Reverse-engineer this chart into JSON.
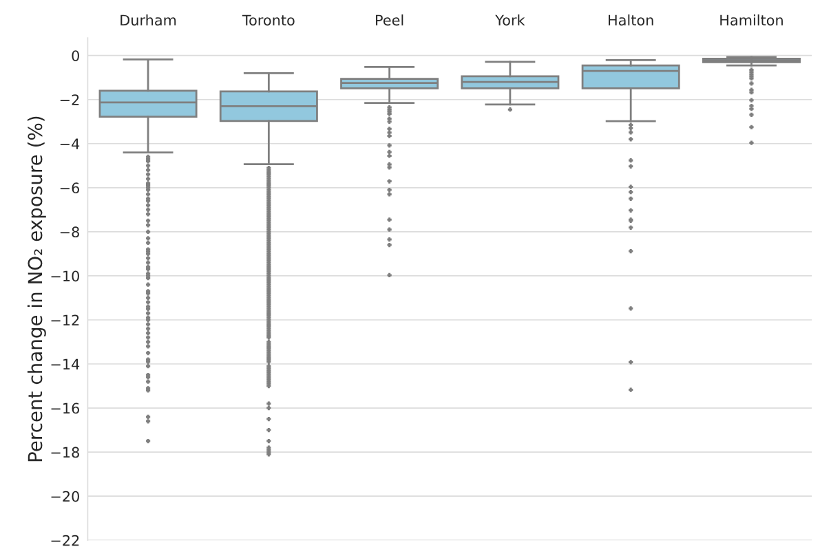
{
  "chart_data": {
    "type": "box",
    "ylabel": "Percent change in NO₂ exposure (%)",
    "categories": [
      "Durham",
      "Toronto",
      "Peel",
      "York",
      "Halton",
      "Hamilton"
    ],
    "color": "#92c8de",
    "boxes": [
      {
        "low": -4.4,
        "q1": -2.78,
        "median": -2.13,
        "q3": -1.6,
        "high": -0.18,
        "outliers": [
          -4.6,
          -4.7,
          -4.8,
          -5.0,
          -5.2,
          -5.4,
          -5.6,
          -5.8,
          -5.9,
          -6.0,
          -6.1,
          -6.3,
          -6.5,
          -6.6,
          -6.8,
          -7.0,
          -7.2,
          -7.5,
          -7.7,
          -8.0,
          -8.3,
          -8.5,
          -8.8,
          -8.9,
          -9.0,
          -9.2,
          -9.4,
          -9.6,
          -9.7,
          -9.9,
          -10.0,
          -10.1,
          -10.4,
          -10.7,
          -10.8,
          -11.0,
          -11.2,
          -11.4,
          -11.5,
          -11.7,
          -11.9,
          -12.0,
          -12.2,
          -12.4,
          -12.6,
          -12.8,
          -13.0,
          -13.2,
          -13.5,
          -13.8,
          -13.9,
          -14.1,
          -14.5,
          -14.6,
          -14.8,
          -15.1,
          -15.2,
          -16.4,
          -16.6,
          -17.5
        ]
      },
      {
        "low": -4.93,
        "q1": -2.97,
        "median": -2.3,
        "q3": -1.63,
        "high": -0.8,
        "outliers": [
          -5.1,
          -5.2,
          -5.3,
          -5.4,
          -5.5,
          -5.6,
          -5.7,
          -5.8,
          -5.9,
          -6.0,
          -6.1,
          -6.2,
          -6.3,
          -6.4,
          -6.5,
          -6.6,
          -6.7,
          -6.8,
          -6.9,
          -7.0,
          -7.1,
          -7.2,
          -7.3,
          -7.4,
          -7.5,
          -7.6,
          -7.7,
          -7.8,
          -7.9,
          -8.0,
          -8.1,
          -8.2,
          -8.3,
          -8.4,
          -8.5,
          -8.6,
          -8.7,
          -8.8,
          -8.9,
          -9.0,
          -9.1,
          -9.2,
          -9.3,
          -9.4,
          -9.5,
          -9.6,
          -9.7,
          -9.8,
          -9.9,
          -10.0,
          -10.1,
          -10.2,
          -10.3,
          -10.4,
          -10.5,
          -10.6,
          -10.7,
          -10.8,
          -10.9,
          -11.0,
          -11.1,
          -11.2,
          -11.3,
          -11.4,
          -11.5,
          -11.6,
          -11.7,
          -11.8,
          -11.9,
          -12.0,
          -12.1,
          -12.2,
          -12.3,
          -12.4,
          -12.5,
          -12.6,
          -12.7,
          -12.8,
          -13.0,
          -13.1,
          -13.2,
          -13.3,
          -13.4,
          -13.5,
          -13.6,
          -13.7,
          -13.8,
          -13.9,
          -14.1,
          -14.2,
          -14.3,
          -14.4,
          -14.5,
          -14.6,
          -14.7,
          -14.8,
          -14.9,
          -15.0,
          -15.8,
          -16.0,
          -16.5,
          -17.0,
          -17.5,
          -17.8,
          -17.9,
          -18.0,
          -18.1
        ]
      },
      {
        "low": -2.15,
        "q1": -1.49,
        "median": -1.25,
        "q3": -1.06,
        "high": -0.52,
        "outliers": [
          -2.35,
          -2.45,
          -2.55,
          -2.65,
          -2.87,
          -3.0,
          -3.33,
          -3.5,
          -3.65,
          -4.08,
          -4.38,
          -4.55,
          -4.94,
          -5.08,
          -5.71,
          -6.1,
          -6.3,
          -7.45,
          -7.9,
          -8.35,
          -8.6,
          -9.97
        ]
      },
      {
        "low": -2.22,
        "q1": -1.49,
        "median": -1.2,
        "q3": -0.94,
        "high": -0.29,
        "outliers": [
          -2.45
        ]
      },
      {
        "low": -2.98,
        "q1": -1.49,
        "median": -0.7,
        "q3": -0.45,
        "high": -0.21,
        "outliers": [
          -3.15,
          -3.3,
          -3.49,
          -3.8,
          -4.76,
          -5.03,
          -5.96,
          -6.2,
          -6.5,
          -7.03,
          -7.45,
          -7.5,
          -7.81,
          -8.88,
          -11.48,
          -13.92,
          -15.17
        ]
      },
      {
        "low": -0.45,
        "q1": -0.3,
        "median": -0.22,
        "q3": -0.15,
        "high": -0.07,
        "outliers": [
          -0.65,
          -0.75,
          -0.85,
          -0.95,
          -1.04,
          -1.27,
          -1.56,
          -1.67,
          -2.03,
          -2.29,
          -2.42,
          -2.69,
          -3.25,
          -3.96
        ]
      }
    ],
    "ylim": [
      -22,
      0.8
    ],
    "yticks": [
      {
        "value": 0,
        "label": "0"
      },
      {
        "value": -2,
        "label": "−2"
      },
      {
        "value": -4,
        "label": "−4"
      },
      {
        "value": -6,
        "label": "−6"
      },
      {
        "value": -8,
        "label": "−8"
      },
      {
        "value": -10,
        "label": "−10"
      },
      {
        "value": -12,
        "label": "−12"
      },
      {
        "value": -14,
        "label": "−14"
      },
      {
        "value": -16,
        "label": "−16"
      },
      {
        "value": -18,
        "label": "−18"
      },
      {
        "value": -20,
        "label": "−20"
      },
      {
        "value": -22,
        "label": "−22"
      }
    ],
    "grid": "y"
  }
}
